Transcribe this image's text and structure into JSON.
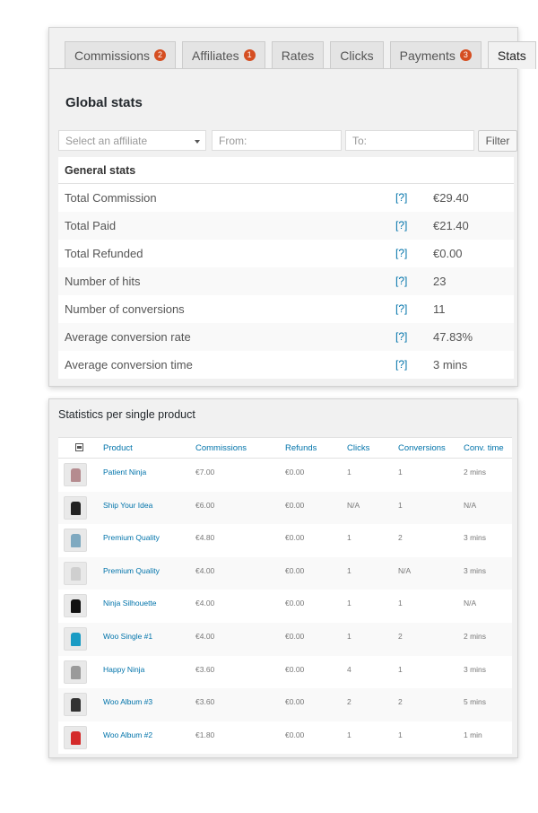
{
  "tabs": [
    {
      "label": "Commissions",
      "badge": "2"
    },
    {
      "label": "Affiliates",
      "badge": "1"
    },
    {
      "label": "Rates",
      "badge": ""
    },
    {
      "label": "Clicks",
      "badge": ""
    },
    {
      "label": "Payments",
      "badge": "3"
    },
    {
      "label": "Stats",
      "badge": ""
    }
  ],
  "global": {
    "title": "Global stats",
    "affiliate_placeholder": "Select an affiliate",
    "from_placeholder": "From:",
    "to_placeholder": "To:",
    "filter_label": "Filter"
  },
  "general": {
    "header": "General stats",
    "help": "[?]",
    "rows": [
      {
        "label": "Total Commission",
        "value": "€29.40"
      },
      {
        "label": "Total Paid",
        "value": "€21.40"
      },
      {
        "label": "Total Refunded",
        "value": "€0.00"
      },
      {
        "label": "Number of hits",
        "value": "23"
      },
      {
        "label": "Number of conversions",
        "value": "11"
      },
      {
        "label": "Average conversion rate",
        "value": "47.83%"
      },
      {
        "label": "Average conversion time",
        "value": "3 mins"
      }
    ]
  },
  "products": {
    "title": "Statistics per single product",
    "columns": {
      "product": "Product",
      "commissions": "Commissions",
      "refunds": "Refunds",
      "clicks": "Clicks",
      "conversions": "Conversions",
      "conv_time": "Conv. time"
    },
    "rows": [
      {
        "name": "Patient Ninja",
        "commissions": "€7.00",
        "refunds": "€0.00",
        "clicks": "1",
        "conversions": "1",
        "conv_time": "2 mins",
        "thumb_color": "#b58b8f"
      },
      {
        "name": "Ship Your Idea",
        "commissions": "€6.00",
        "refunds": "€0.00",
        "clicks": "N/A",
        "conversions": "1",
        "conv_time": "N/A",
        "thumb_color": "#222222"
      },
      {
        "name": "Premium Quality",
        "commissions": "€4.80",
        "refunds": "€0.00",
        "clicks": "1",
        "conversions": "2",
        "conv_time": "3 mins",
        "thumb_color": "#7fa9c0"
      },
      {
        "name": "Premium Quality",
        "commissions": "€4.00",
        "refunds": "€0.00",
        "clicks": "1",
        "conversions": "N/A",
        "conv_time": "3 mins",
        "thumb_color": "#cfcfcf"
      },
      {
        "name": "Ninja Silhouette",
        "commissions": "€4.00",
        "refunds": "€0.00",
        "clicks": "1",
        "conversions": "1",
        "conv_time": "N/A",
        "thumb_color": "#111111"
      },
      {
        "name": "Woo Single #1",
        "commissions": "€4.00",
        "refunds": "€0.00",
        "clicks": "1",
        "conversions": "2",
        "conv_time": "2 mins",
        "thumb_color": "#1a9bc4"
      },
      {
        "name": "Happy Ninja",
        "commissions": "€3.60",
        "refunds": "€0.00",
        "clicks": "4",
        "conversions": "1",
        "conv_time": "3 mins",
        "thumb_color": "#9a9a9a"
      },
      {
        "name": "Woo Album #3",
        "commissions": "€3.60",
        "refunds": "€0.00",
        "clicks": "2",
        "conversions": "2",
        "conv_time": "5 mins",
        "thumb_color": "#333333"
      },
      {
        "name": "Woo Album #2",
        "commissions": "€1.80",
        "refunds": "€0.00",
        "clicks": "1",
        "conversions": "1",
        "conv_time": "1 min",
        "thumb_color": "#d42a2a"
      }
    ]
  }
}
